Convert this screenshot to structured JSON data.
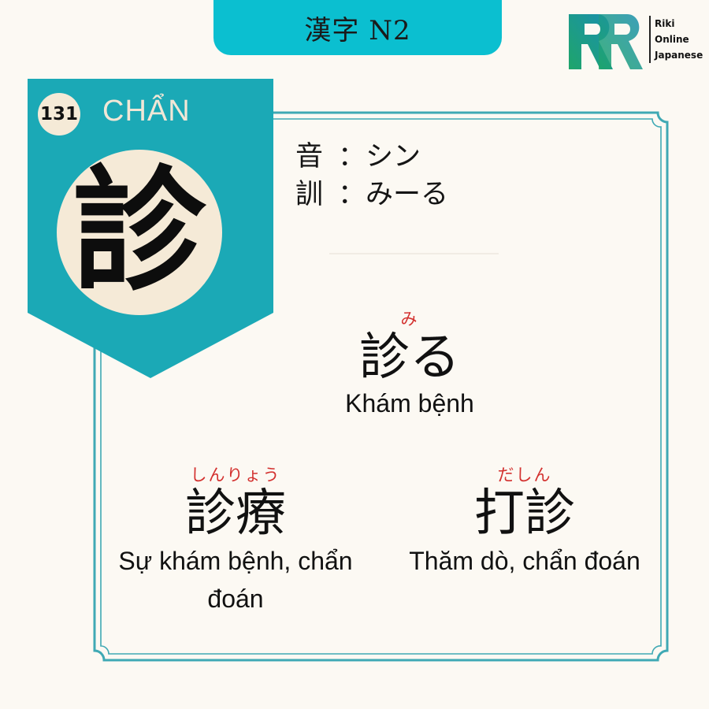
{
  "header": {
    "title": "漢字 N2"
  },
  "logo": {
    "lines": [
      "Riki",
      "Online",
      "Japanese"
    ]
  },
  "kanji": {
    "number": "131",
    "han_viet": "CHẨN",
    "character": "診",
    "on_label": "音",
    "on_reading": "：シン",
    "kun_label": "訓",
    "kun_reading": "：みーる"
  },
  "vocabulary": [
    {
      "furigana": "み",
      "word": "診る",
      "meaning": "Khám bệnh"
    },
    {
      "furigana": "しんりょう",
      "word": "診療",
      "meaning": "Sự khám bệnh, chẩn đoán"
    },
    {
      "furigana": "だしん",
      "word": "打診",
      "meaning": "Thăm dò, chẩn đoán"
    }
  ],
  "colors": {
    "accent": "#0bbfd0",
    "badge": "#1ba9b6",
    "frame": "#3fa9b4",
    "cream": "#f5ead7",
    "furigana": "#d3312f"
  }
}
